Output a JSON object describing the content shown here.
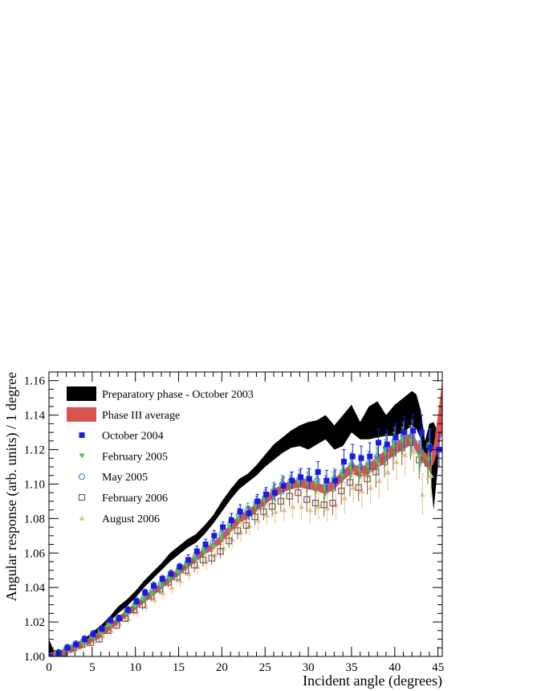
{
  "chart_data": {
    "type": "scatter",
    "title": "",
    "xlabel": "Incident angle (degrees)",
    "ylabel": "Angular response (arb. units) / 1 degree",
    "xlim": [
      0,
      45.5
    ],
    "ylim": [
      1.0,
      1.165
    ],
    "x_ticks": [
      "0",
      "5",
      "10",
      "15",
      "20",
      "25",
      "30",
      "35",
      "40",
      "45"
    ],
    "y_ticks": [
      "1.00",
      "1.02",
      "1.04",
      "1.06",
      "1.08",
      "1.10",
      "1.12",
      "1.14",
      "1.16"
    ],
    "legend_position": "top-left",
    "bands": [
      {
        "name": "Preparatory phase - October 2003",
        "color": "#000000",
        "x": [
          0,
          0.5,
          1,
          2,
          3,
          4,
          5,
          6,
          7,
          8,
          9,
          10,
          11,
          12,
          13,
          14,
          15,
          16,
          17,
          18,
          19,
          20,
          21,
          22,
          23,
          24,
          25,
          26,
          27,
          28,
          29,
          30,
          31,
          32,
          33,
          34,
          35,
          36,
          37,
          38,
          39,
          40,
          41,
          42,
          42.5,
          43,
          43.5,
          44,
          44.5,
          45
        ],
        "upper": [
          1.01,
          1.004,
          1.003,
          1.004,
          1.007,
          1.01,
          1.014,
          1.018,
          1.023,
          1.029,
          1.033,
          1.038,
          1.044,
          1.049,
          1.054,
          1.06,
          1.064,
          1.068,
          1.071,
          1.076,
          1.082,
          1.09,
          1.097,
          1.103,
          1.106,
          1.111,
          1.117,
          1.123,
          1.127,
          1.131,
          1.134,
          1.136,
          1.137,
          1.14,
          1.134,
          1.14,
          1.146,
          1.136,
          1.145,
          1.148,
          1.14,
          1.146,
          1.15,
          1.154,
          1.152,
          1.143,
          1.125,
          1.135,
          1.136,
          1.13
        ],
        "lower": [
          1.0,
          1.0,
          1.0,
          1.001,
          1.004,
          1.007,
          1.011,
          1.015,
          1.02,
          1.025,
          1.029,
          1.034,
          1.04,
          1.045,
          1.05,
          1.055,
          1.059,
          1.063,
          1.066,
          1.071,
          1.077,
          1.084,
          1.091,
          1.097,
          1.101,
          1.105,
          1.11,
          1.114,
          1.118,
          1.121,
          1.122,
          1.12,
          1.123,
          1.126,
          1.12,
          1.122,
          1.13,
          1.126,
          1.126,
          1.127,
          1.128,
          1.128,
          1.13,
          1.134,
          1.132,
          1.126,
          1.113,
          1.112,
          1.085,
          1.11
        ]
      },
      {
        "name": "Phase III average",
        "color": "#d9534f",
        "x": [
          0,
          1,
          2,
          3,
          4,
          5,
          6,
          7,
          8,
          9,
          10,
          11,
          12,
          13,
          14,
          15,
          16,
          17,
          18,
          19,
          20,
          21,
          22,
          23,
          24,
          25,
          26,
          27,
          28,
          29,
          30,
          31,
          32,
          33,
          34,
          35,
          36,
          37,
          38,
          39,
          40,
          41,
          42,
          43,
          44,
          44.5,
          45,
          45.5
        ],
        "upper": [
          1.002,
          1.003,
          1.004,
          1.007,
          1.009,
          1.012,
          1.015,
          1.019,
          1.023,
          1.027,
          1.031,
          1.035,
          1.039,
          1.043,
          1.047,
          1.051,
          1.055,
          1.059,
          1.063,
          1.066,
          1.071,
          1.077,
          1.082,
          1.085,
          1.089,
          1.093,
          1.097,
          1.1,
          1.102,
          1.103,
          1.103,
          1.101,
          1.099,
          1.103,
          1.108,
          1.112,
          1.11,
          1.112,
          1.116,
          1.12,
          1.124,
          1.127,
          1.13,
          1.121,
          1.116,
          1.122,
          1.14,
          1.16
        ],
        "lower": [
          1.0,
          1.0,
          1.001,
          1.003,
          1.005,
          1.008,
          1.011,
          1.015,
          1.019,
          1.023,
          1.027,
          1.031,
          1.035,
          1.039,
          1.043,
          1.047,
          1.051,
          1.055,
          1.059,
          1.062,
          1.066,
          1.072,
          1.077,
          1.08,
          1.084,
          1.088,
          1.092,
          1.095,
          1.097,
          1.098,
          1.097,
          1.096,
          1.094,
          1.097,
          1.102,
          1.106,
          1.104,
          1.106,
          1.109,
          1.113,
          1.117,
          1.12,
          1.123,
          1.114,
          1.108,
          1.112,
          1.12,
          1.13
        ]
      }
    ],
    "series": [
      {
        "name": "October 2004",
        "marker": "square-filled",
        "color": "#1a1ae6",
        "x": [
          0,
          1,
          2,
          3,
          4,
          5,
          6,
          7,
          8,
          9,
          10,
          11,
          12,
          13,
          14,
          15,
          16,
          17,
          18,
          19,
          20,
          21,
          22,
          23,
          24,
          25,
          26,
          27,
          28,
          29,
          30,
          31,
          32,
          33,
          34,
          35,
          36,
          37,
          38,
          39,
          40,
          41,
          42,
          43,
          44,
          45
        ],
        "y": [
          1.0,
          1.002,
          1.005,
          1.007,
          1.01,
          1.013,
          1.016,
          1.021,
          1.022,
          1.027,
          1.032,
          1.037,
          1.041,
          1.045,
          1.048,
          1.052,
          1.056,
          1.061,
          1.065,
          1.07,
          1.075,
          1.079,
          1.084,
          1.083,
          1.09,
          1.094,
          1.095,
          1.099,
          1.102,
          1.104,
          1.103,
          1.107,
          1.102,
          1.102,
          1.113,
          1.116,
          1.115,
          1.116,
          1.124,
          1.123,
          1.127,
          1.13,
          1.131,
          1.13,
          1.121,
          1.12
        ],
        "err": [
          0.001,
          0.002,
          0.002,
          0.002,
          0.002,
          0.002,
          0.002,
          0.002,
          0.002,
          0.002,
          0.002,
          0.002,
          0.002,
          0.002,
          0.002,
          0.002,
          0.003,
          0.003,
          0.003,
          0.003,
          0.003,
          0.004,
          0.004,
          0.004,
          0.004,
          0.004,
          0.005,
          0.005,
          0.005,
          0.005,
          0.006,
          0.006,
          0.006,
          0.006,
          0.007,
          0.007,
          0.007,
          0.008,
          0.008,
          0.008,
          0.008,
          0.009,
          0.009,
          0.01,
          0.01,
          0.01
        ]
      },
      {
        "name": "February 2005",
        "marker": "triangle-down-filled",
        "color": "#44cc44",
        "x": [
          0,
          1,
          2,
          3,
          4,
          5,
          6,
          7,
          8,
          9,
          10,
          11,
          12,
          13,
          14,
          15,
          16,
          17,
          18,
          19,
          20,
          21,
          22,
          23,
          24,
          25,
          26,
          27,
          28,
          29,
          30,
          31,
          32,
          33,
          34,
          35,
          36,
          37,
          38,
          39,
          40,
          41,
          42,
          43,
          44
        ],
        "y": [
          1.0,
          1.002,
          1.004,
          1.006,
          1.008,
          1.011,
          1.014,
          1.018,
          1.021,
          1.025,
          1.029,
          1.033,
          1.036,
          1.041,
          1.045,
          1.049,
          1.053,
          1.057,
          1.061,
          1.064,
          1.069,
          1.075,
          1.08,
          1.083,
          1.087,
          1.09,
          1.094,
          1.098,
          1.1,
          1.101,
          1.101,
          1.1,
          1.097,
          1.101,
          1.105,
          1.109,
          1.108,
          1.11,
          1.113,
          1.118,
          1.122,
          1.125,
          1.125,
          1.116,
          1.114
        ],
        "err": [
          0.001,
          0.001,
          0.001,
          0.002,
          0.002,
          0.002,
          0.002,
          0.002,
          0.002,
          0.002,
          0.002,
          0.002,
          0.002,
          0.003,
          0.003,
          0.003,
          0.003,
          0.003,
          0.003,
          0.003,
          0.004,
          0.004,
          0.004,
          0.004,
          0.004,
          0.005,
          0.005,
          0.005,
          0.005,
          0.005,
          0.006,
          0.006,
          0.006,
          0.006,
          0.006,
          0.007,
          0.007,
          0.007,
          0.008,
          0.008,
          0.008,
          0.008,
          0.009,
          0.009,
          0.01
        ]
      },
      {
        "name": "May 2005",
        "marker": "circle-open",
        "color": "#4a7fe0",
        "x": [
          0,
          1,
          2,
          3,
          4,
          5,
          6,
          7,
          8,
          9,
          10,
          11,
          12,
          13,
          14,
          15,
          16,
          17,
          18,
          19,
          20,
          21,
          22,
          23,
          24,
          25,
          26,
          27,
          28,
          29,
          30,
          31,
          32,
          33,
          34,
          35,
          36,
          37,
          38,
          39,
          40,
          41,
          42,
          43,
          44
        ],
        "y": [
          1.0,
          1.002,
          1.004,
          1.006,
          1.009,
          1.012,
          1.015,
          1.019,
          1.022,
          1.026,
          1.03,
          1.034,
          1.038,
          1.042,
          1.046,
          1.05,
          1.054,
          1.058,
          1.062,
          1.066,
          1.071,
          1.077,
          1.082,
          1.085,
          1.089,
          1.092,
          1.096,
          1.1,
          1.102,
          1.103,
          1.103,
          1.102,
          1.099,
          1.103,
          1.107,
          1.111,
          1.11,
          1.112,
          1.116,
          1.121,
          1.125,
          1.128,
          1.128,
          1.119,
          1.122
        ],
        "err": [
          0.001,
          0.001,
          0.001,
          0.002,
          0.002,
          0.002,
          0.002,
          0.002,
          0.002,
          0.002,
          0.002,
          0.002,
          0.002,
          0.003,
          0.003,
          0.003,
          0.003,
          0.003,
          0.003,
          0.003,
          0.004,
          0.004,
          0.004,
          0.004,
          0.004,
          0.005,
          0.005,
          0.005,
          0.005,
          0.005,
          0.006,
          0.006,
          0.006,
          0.006,
          0.006,
          0.007,
          0.007,
          0.007,
          0.008,
          0.008,
          0.008,
          0.008,
          0.009,
          0.009,
          0.01
        ]
      },
      {
        "name": "February 2006",
        "marker": "square-open",
        "color": "#7a5c4a",
        "x": [
          0,
          1,
          2,
          3,
          4,
          5,
          6,
          7,
          8,
          9,
          10,
          11,
          12,
          13,
          14,
          15,
          16,
          17,
          18,
          19,
          20,
          21,
          22,
          23,
          24,
          25,
          26,
          27,
          28,
          29,
          30,
          31,
          32,
          33,
          34,
          35,
          36,
          37,
          38,
          39,
          40,
          41,
          42,
          43,
          44
        ],
        "y": [
          1.0,
          1.001,
          1.002,
          1.005,
          1.007,
          1.008,
          1.01,
          1.015,
          1.018,
          1.022,
          1.027,
          1.03,
          1.035,
          1.039,
          1.043,
          1.046,
          1.05,
          1.053,
          1.056,
          1.057,
          1.061,
          1.067,
          1.073,
          1.076,
          1.081,
          1.084,
          1.087,
          1.09,
          1.093,
          1.095,
          1.091,
          1.089,
          1.088,
          1.089,
          1.096,
          1.101,
          1.098,
          1.103,
          1.107,
          1.113,
          1.118,
          1.121,
          1.124,
          1.114,
          1.112
        ],
        "err": [
          0.001,
          0.001,
          0.002,
          0.002,
          0.002,
          0.002,
          0.002,
          0.002,
          0.002,
          0.002,
          0.003,
          0.003,
          0.003,
          0.003,
          0.003,
          0.003,
          0.003,
          0.004,
          0.004,
          0.004,
          0.004,
          0.004,
          0.005,
          0.005,
          0.005,
          0.005,
          0.006,
          0.006,
          0.006,
          0.006,
          0.007,
          0.007,
          0.007,
          0.007,
          0.008,
          0.008,
          0.008,
          0.009,
          0.009,
          0.009,
          0.01,
          0.01,
          0.01,
          0.011,
          0.012
        ]
      },
      {
        "name": "August 2006",
        "marker": "triangle-up-filled",
        "color": "#e6c08c",
        "x": [
          0,
          1,
          2,
          3,
          4,
          5,
          6,
          7,
          8,
          9,
          10,
          11,
          12,
          13,
          14,
          15,
          16,
          17,
          18,
          19,
          20,
          21,
          22,
          23,
          24,
          25,
          26,
          27,
          28,
          29,
          30,
          31,
          32,
          33,
          34,
          35,
          36,
          37,
          38,
          39,
          40,
          41,
          42,
          43,
          44
        ],
        "y": [
          1.0,
          1.001,
          1.003,
          1.005,
          1.007,
          1.009,
          1.012,
          1.015,
          1.019,
          1.022,
          1.026,
          1.029,
          1.033,
          1.037,
          1.04,
          1.044,
          1.048,
          1.052,
          1.055,
          1.059,
          1.063,
          1.068,
          1.072,
          1.076,
          1.079,
          1.082,
          1.084,
          1.085,
          1.087,
          1.087,
          1.085,
          1.087,
          1.086,
          1.088,
          1.092,
          1.098,
          1.096,
          1.098,
          1.102,
          1.107,
          1.113,
          1.117,
          1.119,
          1.094,
          1.105
        ],
        "err": [
          0.001,
          0.002,
          0.002,
          0.002,
          0.002,
          0.002,
          0.002,
          0.003,
          0.003,
          0.003,
          0.003,
          0.003,
          0.003,
          0.004,
          0.004,
          0.004,
          0.004,
          0.004,
          0.005,
          0.005,
          0.005,
          0.005,
          0.006,
          0.006,
          0.006,
          0.006,
          0.007,
          0.007,
          0.007,
          0.008,
          0.008,
          0.008,
          0.008,
          0.009,
          0.009,
          0.009,
          0.01,
          0.01,
          0.01,
          0.011,
          0.011,
          0.012,
          0.012,
          0.012,
          0.013
        ]
      }
    ]
  }
}
